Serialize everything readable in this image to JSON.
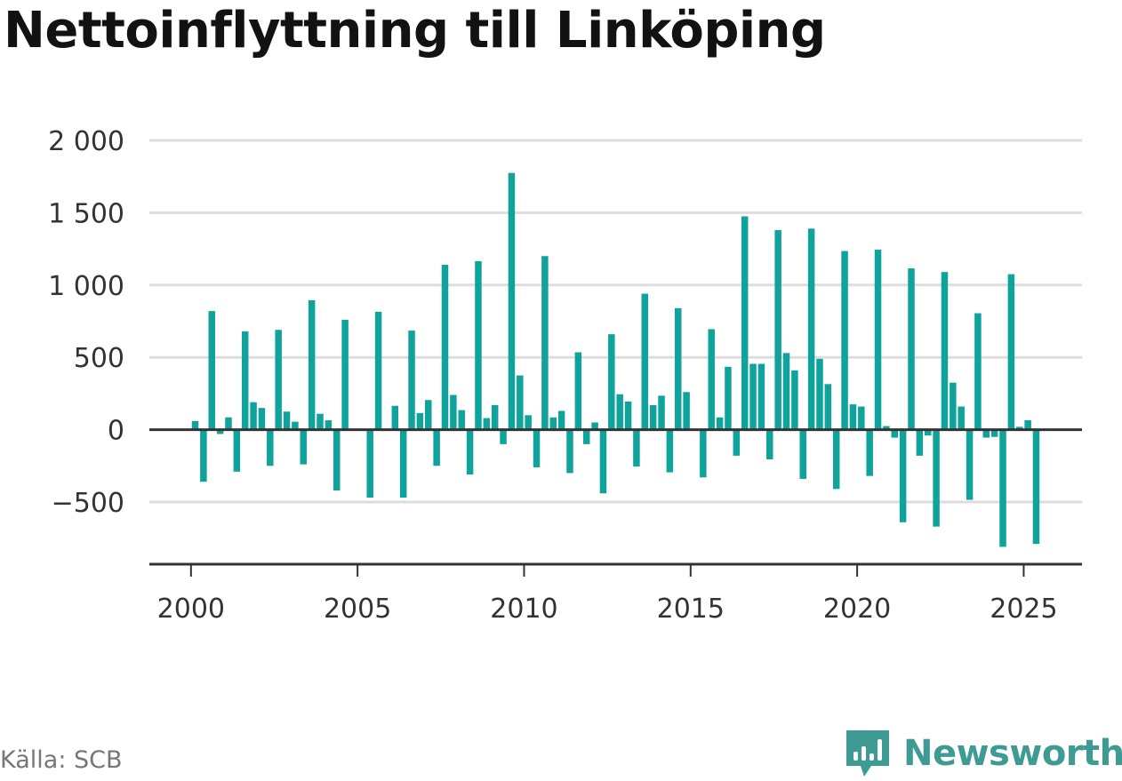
{
  "header": {
    "title": "Nettoinflyttning till Linköping"
  },
  "footer": {
    "source": "Källa: SCB",
    "brand_name": "Newsworthy",
    "brand_icon": "newsworthy-logo-icon"
  },
  "colors": {
    "bar": "#0fa39b",
    "grid": "#dddddd",
    "axis": "#333333",
    "brand": "#3e9b93"
  },
  "chart_data": {
    "type": "bar",
    "title": "Nettoinflyttning till Linköping",
    "xlabel": "",
    "ylabel": "",
    "ylim": [
      -930,
      2000
    ],
    "xlim": [
      1998.75,
      2026.75
    ],
    "grid": true,
    "y_ticks": [
      -500,
      0,
      500,
      1000,
      1500,
      2000
    ],
    "y_tick_labels": [
      "−500",
      "0",
      "500",
      "1 000",
      "1 500",
      "2 000"
    ],
    "x_ticks": [
      2000,
      2005,
      2010,
      2015,
      2020,
      2025
    ],
    "x_tick_labels": [
      "2000",
      "2005",
      "2010",
      "2015",
      "2020",
      "2025"
    ],
    "x": [
      2000.125,
      2000.375,
      2000.625,
      2000.875,
      2001.125,
      2001.375,
      2001.625,
      2001.875,
      2002.125,
      2002.375,
      2002.625,
      2002.875,
      2003.125,
      2003.375,
      2003.625,
      2003.875,
      2004.125,
      2004.375,
      2004.625,
      2004.875,
      2005.125,
      2005.375,
      2005.625,
      2005.875,
      2006.125,
      2006.375,
      2006.625,
      2006.875,
      2007.125,
      2007.375,
      2007.625,
      2007.875,
      2008.125,
      2008.375,
      2008.625,
      2008.875,
      2009.125,
      2009.375,
      2009.625,
      2009.875,
      2010.125,
      2010.375,
      2010.625,
      2010.875,
      2011.125,
      2011.375,
      2011.625,
      2011.875,
      2012.125,
      2012.375,
      2012.625,
      2012.875,
      2013.125,
      2013.375,
      2013.625,
      2013.875,
      2014.125,
      2014.375,
      2014.625,
      2014.875,
      2015.125,
      2015.375,
      2015.625,
      2015.875,
      2016.125,
      2016.375,
      2016.625,
      2016.875,
      2017.125,
      2017.375,
      2017.625,
      2017.875,
      2018.125,
      2018.375,
      2018.625,
      2018.875,
      2019.125,
      2019.375,
      2019.625,
      2019.875,
      2020.125,
      2020.375,
      2020.625,
      2020.875,
      2021.125,
      2021.375,
      2021.625,
      2021.875,
      2022.125,
      2022.375,
      2022.625,
      2022.875,
      2023.125,
      2023.375,
      2023.625,
      2023.875,
      2024.125,
      2024.375,
      2024.625,
      2024.875,
      2025.125,
      2025.375
    ],
    "values": [
      60,
      -360,
      820,
      -30,
      85,
      -290,
      680,
      190,
      150,
      -250,
      690,
      125,
      55,
      -240,
      895,
      110,
      65,
      -420,
      760,
      0,
      0,
      -470,
      815,
      0,
      165,
      -470,
      685,
      115,
      205,
      -250,
      1140,
      240,
      135,
      -310,
      1165,
      80,
      170,
      -100,
      1775,
      375,
      100,
      -260,
      1200,
      85,
      130,
      -300,
      535,
      -100,
      50,
      -440,
      660,
      245,
      195,
      -255,
      940,
      170,
      235,
      -295,
      840,
      260,
      0,
      -330,
      695,
      85,
      435,
      -180,
      1475,
      455,
      455,
      -205,
      1380,
      530,
      410,
      -340,
      1390,
      490,
      315,
      -410,
      1235,
      175,
      160,
      -320,
      1245,
      25,
      -55,
      -640,
      1115,
      -180,
      -40,
      -670,
      1090,
      325,
      160,
      -485,
      805,
      -55,
      -50,
      -810,
      1075,
      20,
      65,
      -790
    ]
  }
}
